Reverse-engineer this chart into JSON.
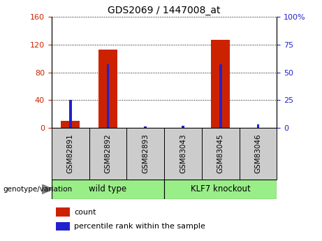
{
  "title": "GDS2069 / 1447008_at",
  "categories": [
    "GSM82891",
    "GSM82892",
    "GSM82893",
    "GSM83043",
    "GSM83045",
    "GSM83046"
  ],
  "count_values": [
    10,
    113,
    0,
    0,
    127,
    0
  ],
  "percentile_values": [
    25,
    57,
    1,
    2,
    57,
    3
  ],
  "left_ylim": [
    0,
    160
  ],
  "left_yticks": [
    0,
    40,
    80,
    120,
    160
  ],
  "right_ylim": [
    0,
    100
  ],
  "right_yticks": [
    0,
    25,
    50,
    75,
    100
  ],
  "right_yticklabels": [
    "0",
    "25",
    "50",
    "75",
    "100%"
  ],
  "bar_color_count": "#cc2200",
  "bar_color_pct": "#2222cc",
  "group1_label": "wild type",
  "group2_label": "KLF7 knockout",
  "group_bg_color": "#99ee88",
  "sample_label_bg": "#cccccc",
  "legend_count_label": "count",
  "legend_pct_label": "percentile rank within the sample",
  "genotype_label": "genotype/variation",
  "left_tick_color": "#cc2200",
  "right_tick_color": "#2222cc",
  "bar_width": 0.5,
  "pct_bar_width": 0.07
}
